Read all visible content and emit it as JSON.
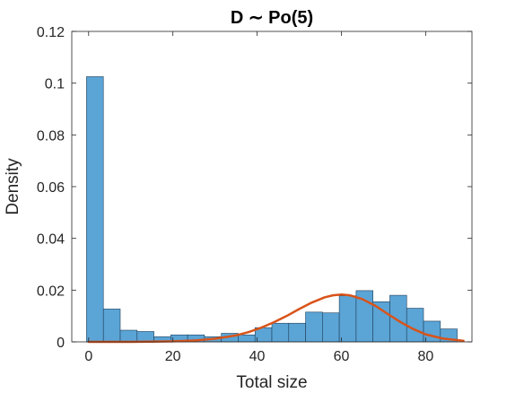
{
  "chart_data": {
    "type": "bar",
    "title": "D ∼ Po(5)",
    "xlabel": "Total size",
    "ylabel": "Density",
    "xlim": [
      -4,
      91
    ],
    "ylim": [
      0,
      0.12
    ],
    "x_ticks": [
      0,
      20,
      40,
      60,
      80
    ],
    "x_tick_labels": [
      "0",
      "20",
      "40",
      "60",
      "80"
    ],
    "y_ticks": [
      0,
      0.02,
      0.04,
      0.06,
      0.08,
      0.1,
      0.12
    ],
    "y_tick_labels": [
      "0",
      "0.02",
      "0.04",
      "0.06",
      "0.08",
      "0.1",
      "0.12"
    ],
    "grid": false,
    "bar_color": "#5ba4d6",
    "bar_edge_color": "#1e3f5a",
    "curve_color": "#d95319",
    "histogram": {
      "bin_edges": [
        -0.5,
        3.5,
        7.5,
        11.5,
        15.5,
        19.5,
        23.5,
        27.5,
        31.5,
        35.5,
        39.5,
        43.5,
        47.5,
        51.5,
        55.5,
        59.5,
        63.5,
        67.5,
        71.5,
        75.5,
        79.5,
        83.5,
        87.5
      ],
      "density": [
        0.1025,
        0.0127,
        0.0045,
        0.004,
        0.002,
        0.0027,
        0.0027,
        0.002,
        0.0033,
        0.0027,
        0.0055,
        0.0072,
        0.0072,
        0.0115,
        0.0112,
        0.0178,
        0.0198,
        0.0155,
        0.018,
        0.013,
        0.008,
        0.005,
        0.0012
      ]
    },
    "fit_curve": {
      "x": [
        0,
        5,
        10,
        15,
        20,
        25,
        30,
        35,
        38,
        41,
        44,
        47,
        50,
        53,
        56,
        58,
        60,
        62,
        65,
        68,
        71,
        74,
        77,
        80,
        84,
        89
      ],
      "y": [
        0.0,
        0.0,
        0.0,
        0.0001,
        0.0002,
        0.0005,
        0.0012,
        0.0025,
        0.0038,
        0.0055,
        0.0076,
        0.01,
        0.0127,
        0.0152,
        0.0172,
        0.018,
        0.0183,
        0.018,
        0.0165,
        0.014,
        0.0108,
        0.0077,
        0.005,
        0.0029,
        0.0013,
        0.0004
      ]
    }
  }
}
